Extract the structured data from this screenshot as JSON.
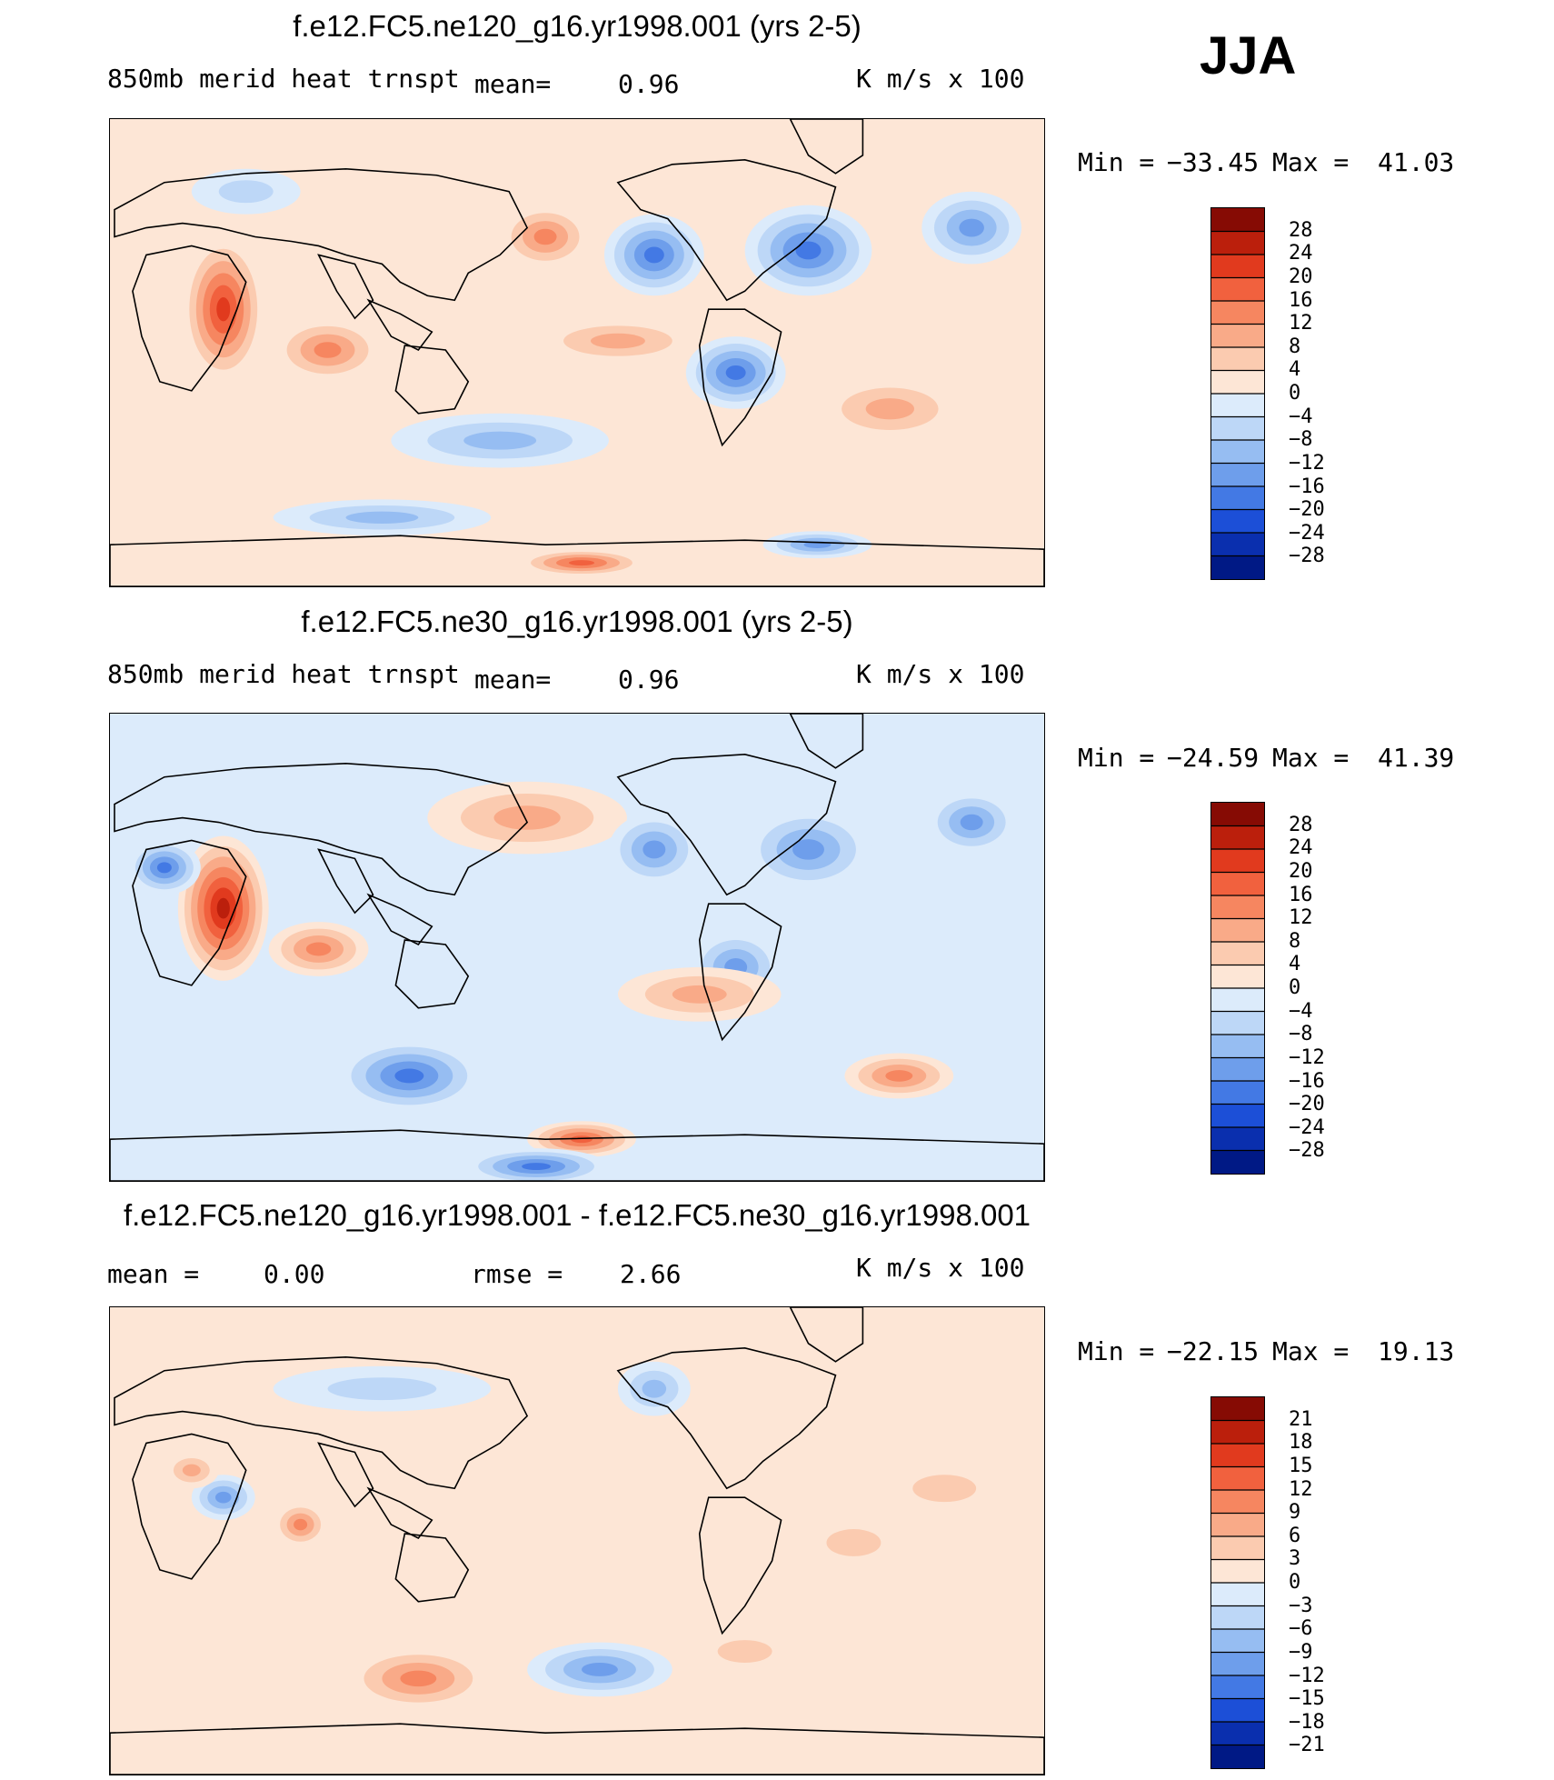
{
  "season": "JJA",
  "colors": {
    "pos": [
      "#fde6d6",
      "#fbcbb0",
      "#f9aa88",
      "#f68660",
      "#f1613e",
      "#e13a1e",
      "#bb1f0c",
      "#860b04"
    ],
    "neg": [
      "#dcebfb",
      "#bdd7f7",
      "#96bdf2",
      "#6e9eeb",
      "#4379e4",
      "#1c4fd7",
      "#0a2fae",
      "#001985"
    ],
    "land_line": "#000000"
  },
  "chart_data": [
    {
      "type": "heatmap",
      "id": "panel1",
      "title": "f.e12.FC5.ne120_g16.yr1998.001 (yrs 2-5)",
      "field": "850mb  merid  heat  trnspt",
      "mean_label": "mean=",
      "mean_value": "0.96",
      "units": "K  m/s  x  100",
      "min_label": "Min  =",
      "min_value": "−33.45",
      "max_label": "Max  =",
      "max_value": "41.03",
      "min": -33.45,
      "max": 41.03,
      "mean": 0.96,
      "levels": [
        28,
        24,
        20,
        16,
        12,
        8,
        4,
        0,
        -4,
        -8,
        -12,
        -16,
        -20,
        -24,
        -28
      ],
      "level_labels": [
        "28",
        "24",
        "20",
        "16",
        "12",
        "8",
        "4",
        "0",
        "−4",
        "−8",
        "−12",
        "−16",
        "−20",
        "−24",
        "−28"
      ]
    },
    {
      "type": "heatmap",
      "id": "panel2",
      "title": "f.e12.FC5.ne30_g16.yr1998.001 (yrs 2-5)",
      "field": "850mb  merid  heat  trnspt",
      "mean_label": "mean=",
      "mean_value": "0.96",
      "units": "K  m/s  x  100",
      "min_label": "Min  =",
      "min_value": "−24.59",
      "max_label": "Max  =",
      "max_value": "41.39",
      "min": -24.59,
      "max": 41.39,
      "mean": 0.96,
      "levels": [
        28,
        24,
        20,
        16,
        12,
        8,
        4,
        0,
        -4,
        -8,
        -12,
        -16,
        -20,
        -24,
        -28
      ],
      "level_labels": [
        "28",
        "24",
        "20",
        "16",
        "12",
        "8",
        "4",
        "0",
        "−4",
        "−8",
        "−12",
        "−16",
        "−20",
        "−24",
        "−28"
      ]
    },
    {
      "type": "heatmap",
      "id": "panel3",
      "title": "f.e12.FC5.ne120_g16.yr1998.001 - f.e12.FC5.ne30_g16.yr1998.001",
      "mean_label": "mean  =",
      "mean_value": "0.00",
      "rmse_label": "rmse  =",
      "rmse_value": "2.66",
      "units": "K  m/s  x  100",
      "min_label": "Min  =",
      "min_value": "−22.15",
      "max_label": "Max  =",
      "max_value": "19.13",
      "min": -22.15,
      "max": 19.13,
      "mean": 0.0,
      "rmse": 2.66,
      "levels": [
        21,
        18,
        15,
        12,
        9,
        6,
        3,
        0,
        -3,
        -6,
        -9,
        -12,
        -15,
        -18,
        -21
      ],
      "level_labels": [
        "21",
        "18",
        "15",
        "12",
        "9",
        "6",
        "3",
        "0",
        "−3",
        "−6",
        "−9",
        "−12",
        "−15",
        "−18",
        "−21"
      ]
    }
  ]
}
